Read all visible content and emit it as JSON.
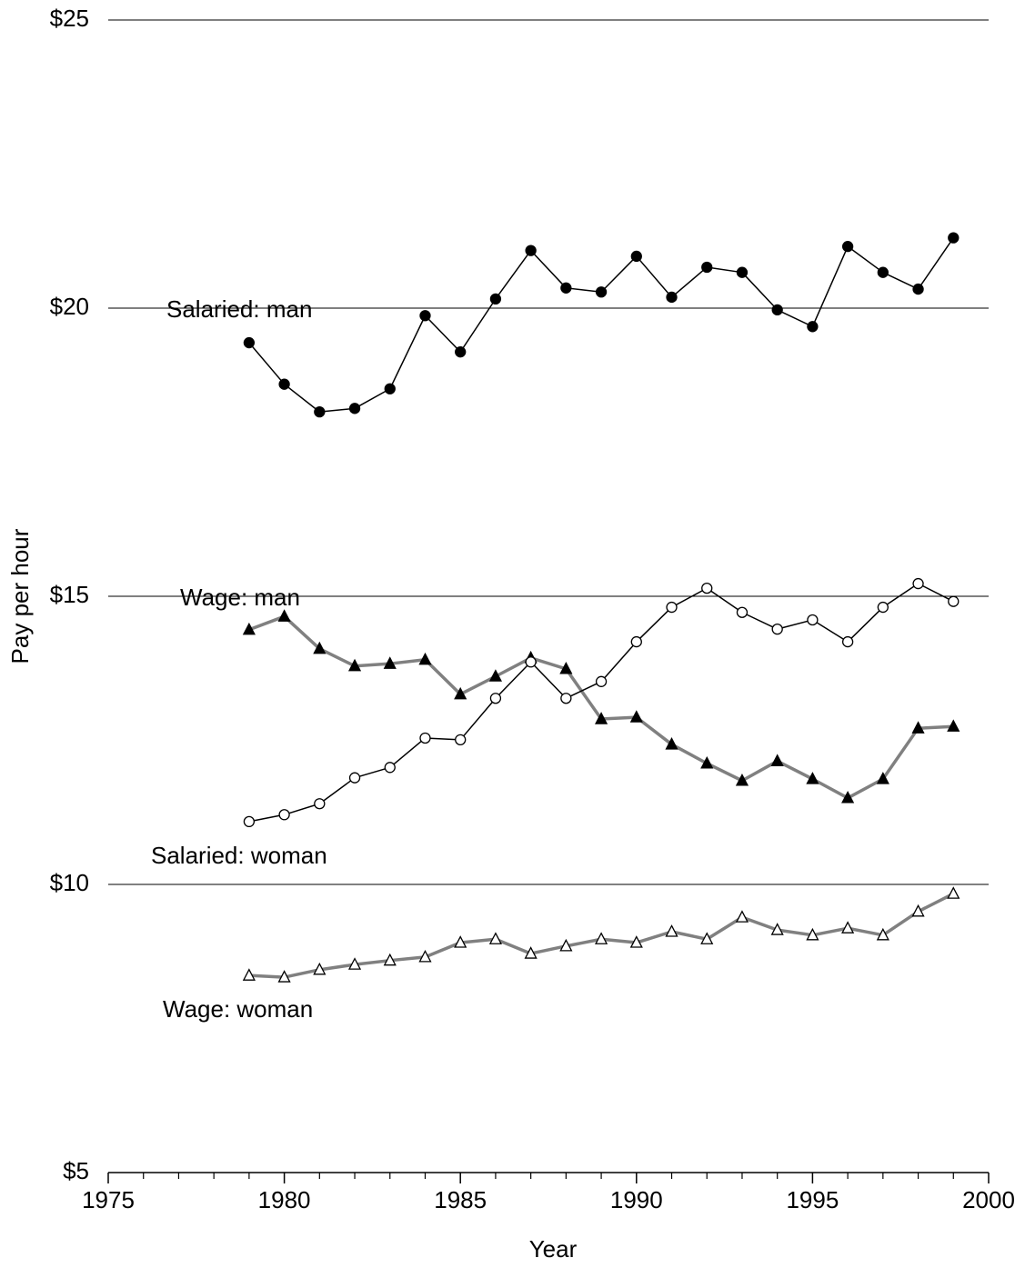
{
  "chart_data": {
    "type": "line",
    "x_label": "Year",
    "y_label": "Pay per hour",
    "x": [
      1979,
      1980,
      1981,
      1982,
      1983,
      1984,
      1985,
      1986,
      1987,
      1988,
      1989,
      1990,
      1991,
      1992,
      1993,
      1994,
      1995,
      1996,
      1997,
      1998,
      1999
    ],
    "series": [
      {
        "name": "Salaried: man",
        "color": "#000000",
        "marker": "circle",
        "marker_fill": "#000000",
        "values": [
          19.4,
          18.68,
          18.2,
          18.26,
          18.6,
          19.87,
          19.24,
          20.16,
          21.0,
          20.35,
          20.28,
          20.9,
          20.19,
          20.71,
          20.62,
          19.97,
          19.68,
          21.07,
          20.62,
          20.33,
          21.22
        ]
      },
      {
        "name": "Wage: man",
        "color": "#808080",
        "marker": "triangle",
        "marker_fill": "#000000",
        "values": [
          14.42,
          14.65,
          14.09,
          13.79,
          13.83,
          13.9,
          13.3,
          13.61,
          13.93,
          13.74,
          12.87,
          12.9,
          12.43,
          12.1,
          11.8,
          12.14,
          11.83,
          11.5,
          11.83,
          12.71,
          12.74
        ]
      },
      {
        "name": "Salaried: woman",
        "color": "#000000",
        "marker": "circle",
        "marker_fill": "#ffffff",
        "values": [
          11.09,
          11.21,
          11.4,
          11.85,
          12.03,
          12.54,
          12.51,
          13.23,
          13.86,
          13.23,
          13.52,
          14.21,
          14.81,
          15.14,
          14.72,
          14.43,
          14.59,
          14.21,
          14.81,
          15.22,
          14.91
        ]
      },
      {
        "name": "Wage: woman",
        "color": "#808080",
        "marker": "triangle",
        "marker_fill": "#ffffff",
        "values": [
          8.42,
          8.39,
          8.52,
          8.61,
          8.68,
          8.74,
          8.99,
          9.05,
          8.8,
          8.93,
          9.05,
          8.99,
          9.18,
          9.05,
          9.43,
          9.21,
          9.12,
          9.24,
          9.12,
          9.53,
          9.84
        ]
      }
    ],
    "xlim": [
      1975,
      2000
    ],
    "xticks": [
      1975,
      1980,
      1985,
      1990,
      1995,
      2000
    ],
    "xminorticks": [
      1976,
      1977,
      1978,
      1979,
      1981,
      1982,
      1983,
      1984,
      1986,
      1987,
      1988,
      1989,
      1991,
      1992,
      1993,
      1994,
      1996,
      1997,
      1998,
      1999
    ],
    "ylim": [
      5,
      25
    ],
    "yticks": [
      {
        "value": 5,
        "label": "$5"
      },
      {
        "value": 10,
        "label": "$10"
      },
      {
        "value": 15,
        "label": "$15"
      },
      {
        "value": 20,
        "label": "$20"
      },
      {
        "value": 25,
        "label": "$25"
      }
    ],
    "grid": true
  }
}
